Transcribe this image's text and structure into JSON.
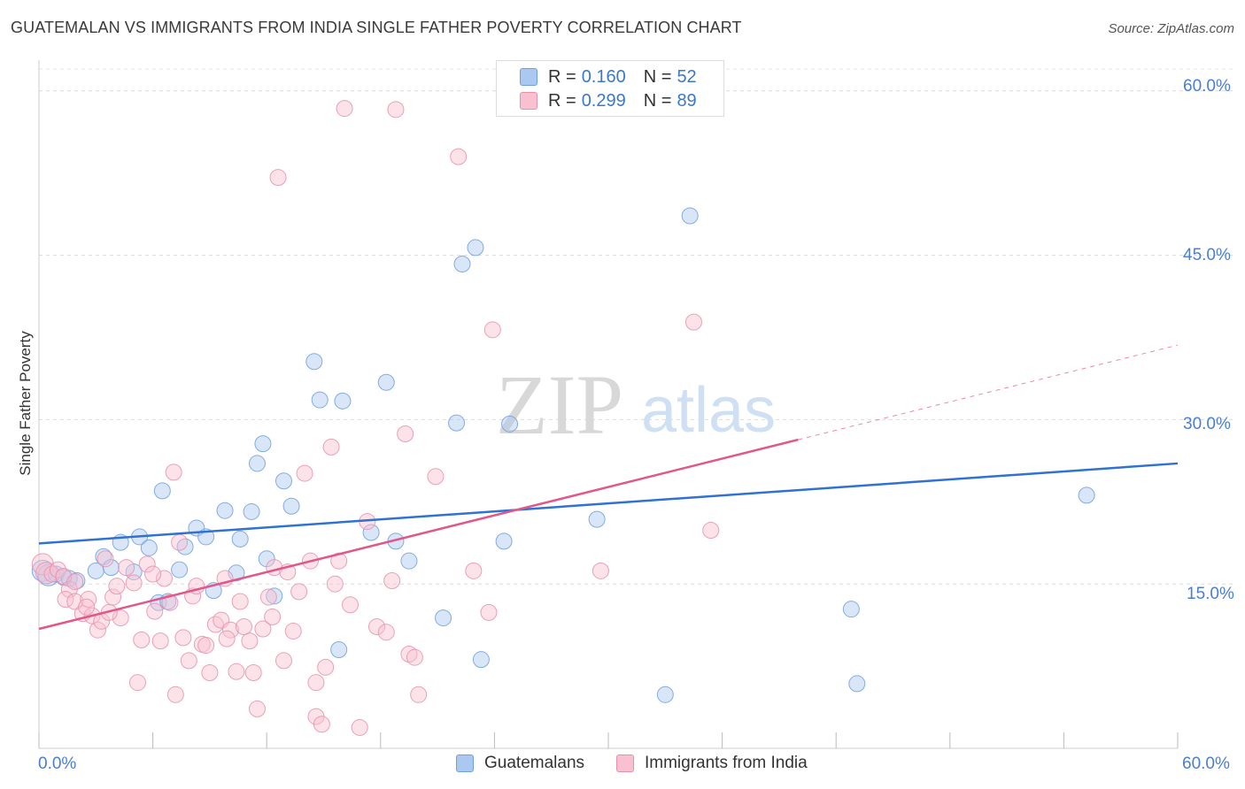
{
  "title": "GUATEMALAN VS IMMIGRANTS FROM INDIA SINGLE FATHER POVERTY CORRELATION CHART",
  "source": "Source: ZipAtlas.com",
  "watermark": {
    "zip": "ZIP",
    "atlas": "atlas"
  },
  "legend": {
    "rows": [
      {
        "r_label": "R =",
        "r_value": "0.160",
        "n_label": "N =",
        "n_value": "52",
        "color": "#aac8f0",
        "stroke": "#6f9fe0"
      },
      {
        "r_label": "R =",
        "r_value": "0.299",
        "n_label": "N =",
        "n_value": "89",
        "color": "#f8c0d0",
        "stroke": "#e890aa"
      }
    ]
  },
  "bottom_legend": [
    {
      "label": "Guatemalans",
      "color": "#aac8f0",
      "stroke": "#6f9fe0"
    },
    {
      "label": "Immigrants from India",
      "color": "#f8c0d0",
      "stroke": "#e890aa"
    }
  ],
  "y_tick_labels": [
    "60.0%",
    "45.0%",
    "30.0%",
    "15.0%"
  ],
  "x_tick_labels": {
    "left": "0.0%",
    "right": "60.0%"
  },
  "chart_data": {
    "type": "scatter",
    "title": "GUATEMALAN VS IMMIGRANTS FROM INDIA SINGLE FATHER POVERTY CORRELATION CHART",
    "xlabel": "",
    "ylabel": "Single Father Poverty",
    "xlim": [
      0,
      60
    ],
    "ylim": [
      0,
      62
    ],
    "y_ticks": [
      15,
      30,
      45,
      60
    ],
    "grid": true,
    "series": [
      {
        "name": "Guatemalans",
        "color": "#6f9fe0",
        "fill": "#aac8f0",
        "trend": {
          "x0": 0,
          "y0": 18.7,
          "x1": 60,
          "y1": 26.0,
          "dashed_from": null
        },
        "points": [
          [
            0.2,
            16.2
          ],
          [
            0.5,
            15.8
          ],
          [
            0.9,
            15.9
          ],
          [
            1.3,
            15.6
          ],
          [
            1.6,
            15.5
          ],
          [
            2.0,
            15.3
          ],
          [
            3.0,
            16.2
          ],
          [
            3.4,
            17.5
          ],
          [
            3.8,
            16.5
          ],
          [
            4.3,
            18.8
          ],
          [
            5.0,
            16.1
          ],
          [
            5.3,
            19.3
          ],
          [
            5.8,
            18.3
          ],
          [
            6.3,
            13.3
          ],
          [
            6.5,
            23.5
          ],
          [
            6.8,
            13.4
          ],
          [
            7.4,
            16.3
          ],
          [
            7.7,
            18.4
          ],
          [
            8.3,
            20.1
          ],
          [
            8.8,
            19.3
          ],
          [
            9.2,
            14.4
          ],
          [
            9.8,
            21.7
          ],
          [
            10.4,
            16.0
          ],
          [
            10.6,
            19.1
          ],
          [
            11.2,
            21.6
          ],
          [
            11.5,
            26.0
          ],
          [
            11.8,
            27.8
          ],
          [
            12.0,
            17.3
          ],
          [
            12.4,
            13.9
          ],
          [
            12.9,
            24.4
          ],
          [
            13.3,
            22.1
          ],
          [
            14.5,
            35.3
          ],
          [
            14.8,
            31.8
          ],
          [
            16.0,
            31.7
          ],
          [
            15.8,
            9.0
          ],
          [
            17.5,
            19.7
          ],
          [
            18.3,
            33.4
          ],
          [
            18.8,
            18.9
          ],
          [
            19.5,
            17.1
          ],
          [
            21.3,
            11.9
          ],
          [
            22.0,
            29.7
          ],
          [
            22.3,
            44.2
          ],
          [
            23.0,
            45.7
          ],
          [
            23.3,
            8.1
          ],
          [
            24.5,
            18.9
          ],
          [
            24.8,
            29.6
          ],
          [
            29.4,
            20.9
          ],
          [
            33.0,
            4.9
          ],
          [
            34.3,
            48.6
          ],
          [
            42.8,
            12.7
          ],
          [
            43.1,
            5.9
          ],
          [
            55.2,
            23.1
          ]
        ]
      },
      {
        "name": "Immigrants from India",
        "color": "#e890aa",
        "fill": "#f8c0d0",
        "trend": {
          "x0": 0,
          "y0": 10.9,
          "x1": 60,
          "y1": 36.8,
          "dashed_from": 40
        },
        "points": [
          [
            0.2,
            16.8
          ],
          [
            0.4,
            16.0
          ],
          [
            0.7,
            15.9
          ],
          [
            1.0,
            16.3
          ],
          [
            1.3,
            15.7
          ],
          [
            1.6,
            14.5
          ],
          [
            1.9,
            15.2
          ],
          [
            1.4,
            13.6
          ],
          [
            1.9,
            13.4
          ],
          [
            2.3,
            12.3
          ],
          [
            2.6,
            13.6
          ],
          [
            2.8,
            12.1
          ],
          [
            3.1,
            10.8
          ],
          [
            3.3,
            11.6
          ],
          [
            3.5,
            17.3
          ],
          [
            3.9,
            13.8
          ],
          [
            4.1,
            14.8
          ],
          [
            4.3,
            11.9
          ],
          [
            4.6,
            16.5
          ],
          [
            5.0,
            15.1
          ],
          [
            5.2,
            6.0
          ],
          [
            5.4,
            9.9
          ],
          [
            5.7,
            16.8
          ],
          [
            6.1,
            12.5
          ],
          [
            6.4,
            9.8
          ],
          [
            6.6,
            15.5
          ],
          [
            6.9,
            13.3
          ],
          [
            7.1,
            25.2
          ],
          [
            7.4,
            18.8
          ],
          [
            7.6,
            10.1
          ],
          [
            7.9,
            8.0
          ],
          [
            8.1,
            13.9
          ],
          [
            8.3,
            14.8
          ],
          [
            8.6,
            9.5
          ],
          [
            9.0,
            6.9
          ],
          [
            9.3,
            11.3
          ],
          [
            9.6,
            11.7
          ],
          [
            9.8,
            15.5
          ],
          [
            10.1,
            10.8
          ],
          [
            10.4,
            7.0
          ],
          [
            10.6,
            13.4
          ],
          [
            10.8,
            11.1
          ],
          [
            11.1,
            9.8
          ],
          [
            11.3,
            6.9
          ],
          [
            11.5,
            3.6
          ],
          [
            11.8,
            10.9
          ],
          [
            12.1,
            13.8
          ],
          [
            12.4,
            16.5
          ],
          [
            12.6,
            52.1
          ],
          [
            12.9,
            8.0
          ],
          [
            13.1,
            16.1
          ],
          [
            13.4,
            10.7
          ],
          [
            13.7,
            14.3
          ],
          [
            14.0,
            25.1
          ],
          [
            14.3,
            17.1
          ],
          [
            14.6,
            2.9
          ],
          [
            14.9,
            2.2
          ],
          [
            15.1,
            7.4
          ],
          [
            15.4,
            27.5
          ],
          [
            15.6,
            15.0
          ],
          [
            15.8,
            17.1
          ],
          [
            16.1,
            58.4
          ],
          [
            16.4,
            13.1
          ],
          [
            16.9,
            1.9
          ],
          [
            17.3,
            20.7
          ],
          [
            17.8,
            11.1
          ],
          [
            18.3,
            10.6
          ],
          [
            18.6,
            15.3
          ],
          [
            18.8,
            58.3
          ],
          [
            19.3,
            28.7
          ],
          [
            19.5,
            8.6
          ],
          [
            19.8,
            8.3
          ],
          [
            20.0,
            4.9
          ],
          [
            20.9,
            24.8
          ],
          [
            22.1,
            54.0
          ],
          [
            22.9,
            16.2
          ],
          [
            23.7,
            12.4
          ],
          [
            23.9,
            38.2
          ],
          [
            29.6,
            16.2
          ],
          [
            34.5,
            38.9
          ],
          [
            35.4,
            19.9
          ],
          [
            7.2,
            4.9
          ],
          [
            2.5,
            12.9
          ],
          [
            6.0,
            15.9
          ],
          [
            12.3,
            12.0
          ],
          [
            9.9,
            10.0
          ],
          [
            3.7,
            12.4
          ],
          [
            8.8,
            9.4
          ],
          [
            14.6,
            6.0
          ]
        ]
      }
    ]
  }
}
